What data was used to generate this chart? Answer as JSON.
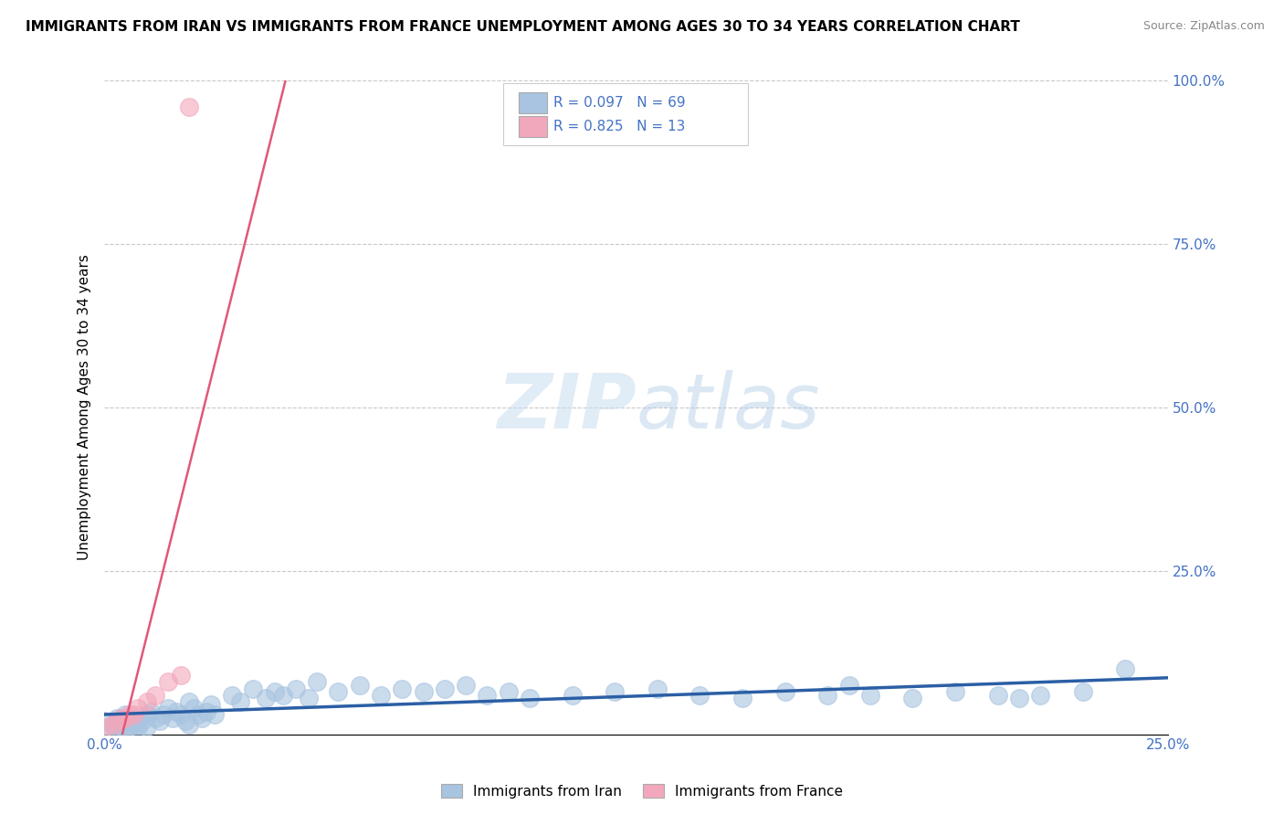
{
  "title": "IMMIGRANTS FROM IRAN VS IMMIGRANTS FROM FRANCE UNEMPLOYMENT AMONG AGES 30 TO 34 YEARS CORRELATION CHART",
  "source": "Source: ZipAtlas.com",
  "ylabel": "Unemployment Among Ages 30 to 34 years",
  "xlim": [
    0,
    0.25
  ],
  "ylim": [
    0,
    1.0
  ],
  "x_tick_positions": [
    0.0,
    0.05,
    0.1,
    0.15,
    0.2,
    0.25
  ],
  "x_tick_labels": [
    "0.0%",
    "",
    "",
    "",
    "",
    "25.0%"
  ],
  "y_tick_positions": [
    0.0,
    0.25,
    0.5,
    0.75,
    1.0
  ],
  "y_tick_labels": [
    "",
    "25.0%",
    "50.0%",
    "75.0%",
    "100.0%"
  ],
  "iran_R": 0.097,
  "iran_N": 69,
  "france_R": 0.825,
  "france_N": 13,
  "iran_color": "#a8c4e0",
  "france_color": "#f2a8bc",
  "iran_line_color": "#2b5fa5",
  "france_line_color": "#e05878",
  "tick_color": "#4472c4",
  "background_color": "#ffffff",
  "grid_color": "#bbbbbb",
  "watermark_text": "ZIPatlas",
  "watermark_color": "#c8ddf0",
  "iran_x": [
    0.0,
    0.001,
    0.002,
    0.003,
    0.003,
    0.004,
    0.005,
    0.005,
    0.006,
    0.006,
    0.007,
    0.007,
    0.008,
    0.008,
    0.009,
    0.01,
    0.01,
    0.011,
    0.012,
    0.013,
    0.014,
    0.015,
    0.016,
    0.017,
    0.018,
    0.019,
    0.02,
    0.02,
    0.021,
    0.022,
    0.023,
    0.024,
    0.025,
    0.026,
    0.03,
    0.032,
    0.035,
    0.038,
    0.04,
    0.042,
    0.045,
    0.048,
    0.05,
    0.055,
    0.06,
    0.065,
    0.07,
    0.075,
    0.08,
    0.085,
    0.09,
    0.095,
    0.1,
    0.11,
    0.12,
    0.13,
    0.14,
    0.15,
    0.16,
    0.17,
    0.175,
    0.18,
    0.19,
    0.2,
    0.21,
    0.215,
    0.22,
    0.23,
    0.24
  ],
  "iran_y": [
    0.02,
    0.01,
    0.015,
    0.025,
    0.005,
    0.01,
    0.03,
    0.008,
    0.02,
    0.012,
    0.018,
    0.025,
    0.01,
    0.015,
    0.02,
    0.03,
    0.012,
    0.035,
    0.025,
    0.02,
    0.03,
    0.04,
    0.025,
    0.035,
    0.03,
    0.02,
    0.05,
    0.015,
    0.04,
    0.03,
    0.025,
    0.035,
    0.045,
    0.03,
    0.06,
    0.05,
    0.07,
    0.055,
    0.065,
    0.06,
    0.07,
    0.055,
    0.08,
    0.065,
    0.075,
    0.06,
    0.07,
    0.065,
    0.07,
    0.075,
    0.06,
    0.065,
    0.055,
    0.06,
    0.065,
    0.07,
    0.06,
    0.055,
    0.065,
    0.06,
    0.075,
    0.06,
    0.055,
    0.065,
    0.06,
    0.055,
    0.06,
    0.065,
    0.1
  ],
  "france_x": [
    0.0,
    0.002,
    0.003,
    0.004,
    0.005,
    0.006,
    0.007,
    0.008,
    0.01,
    0.012,
    0.015,
    0.018,
    0.02
  ],
  "france_y": [
    0.01,
    0.015,
    0.02,
    0.025,
    0.025,
    0.03,
    0.03,
    0.04,
    0.05,
    0.06,
    0.08,
    0.09,
    0.96
  ]
}
